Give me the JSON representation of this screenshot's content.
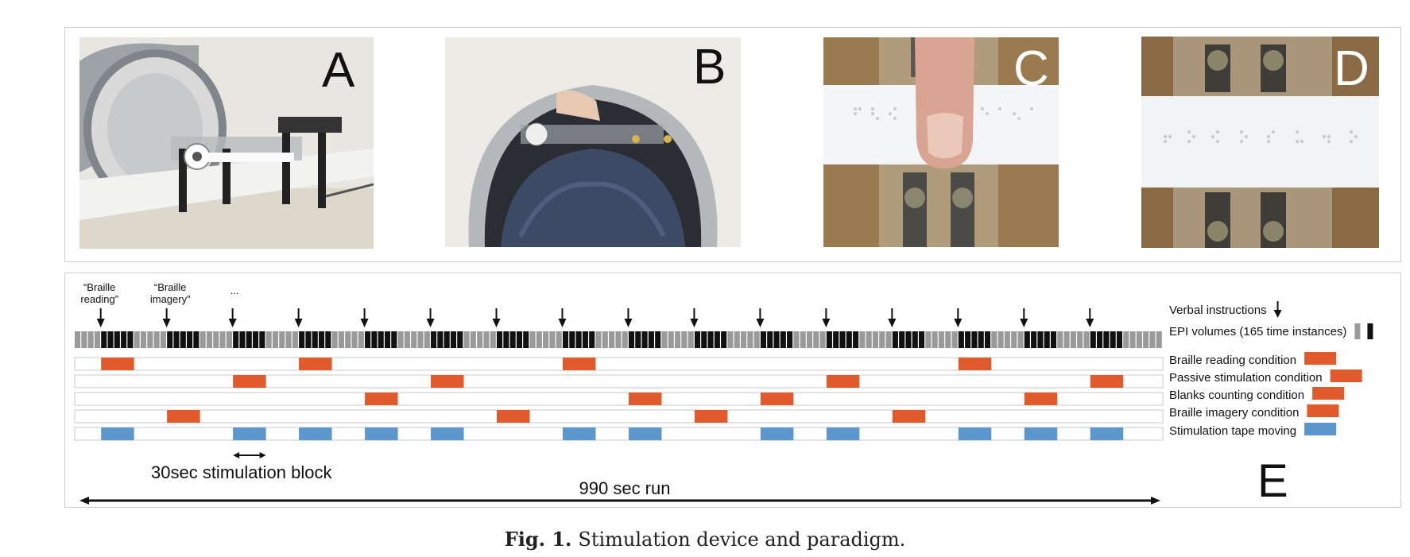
{
  "figure": {
    "caption_label": "Fig. 1.",
    "caption_text": "Stimulation device and paradigm."
  },
  "panels": {
    "a": "A",
    "b": "B",
    "c": "C",
    "d": "D",
    "e": "E"
  },
  "timeline": {
    "instruction_labels": [
      "“Braille reading”",
      "“Braille imagery”",
      "..."
    ],
    "arrow_blocks": 16,
    "block_pattern": [
      5,
      5,
      5,
      5,
      5,
      5,
      5,
      5,
      5,
      5,
      5,
      5,
      5,
      5,
      5,
      5
    ],
    "volumes_total": 165,
    "legend": [
      {
        "label": "Verbal instructions",
        "kind": "arrow"
      },
      {
        "label": "EPI volumes (165 time instances)",
        "kind": "epi"
      },
      {
        "label": "Braille reading condition",
        "kind": "orange"
      },
      {
        "label": "Passive stimulation condition",
        "kind": "orange"
      },
      {
        "label": "Blanks counting condition",
        "kind": "orange"
      },
      {
        "label": "Braille imagery condition",
        "kind": "orange"
      },
      {
        "label": "Stimulation tape moving",
        "kind": "blue"
      }
    ],
    "condition_rows": [
      {
        "name": "Braille reading condition",
        "blocks": [
          0,
          3,
          7,
          13
        ]
      },
      {
        "name": "Passive stimulation condition",
        "blocks": [
          2,
          5,
          11,
          15
        ]
      },
      {
        "name": "Blanks counting condition",
        "blocks": [
          4,
          8,
          10,
          14
        ]
      },
      {
        "name": "Braille imagery condition",
        "blocks": [
          1,
          6,
          9,
          12
        ]
      },
      {
        "name": "Stimulation tape moving",
        "blocks": [
          0,
          2,
          3,
          4,
          5,
          7,
          8,
          10,
          11,
          13,
          14,
          15
        ]
      }
    ],
    "block_label": "30sec stimulation block",
    "run_label": "990 sec run",
    "colors": {
      "orange": "#e05a2b",
      "blue": "#5b96cc",
      "epi_black": "#111111",
      "epi_gray": "#9a9a9a"
    }
  }
}
